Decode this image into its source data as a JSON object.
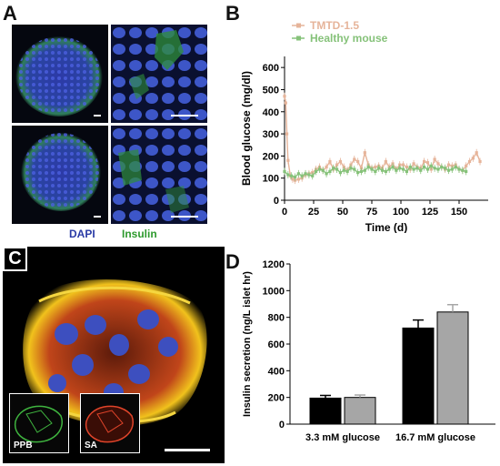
{
  "panels": {
    "a": {
      "letter": "A",
      "legend_dapi": "DAPI",
      "legend_insulin": "Insulin"
    },
    "b": {
      "letter": "B"
    },
    "c": {
      "letter": "C",
      "inset_left": "PPB",
      "inset_right": "SA"
    },
    "d": {
      "letter": "D"
    }
  },
  "chart_data": [
    {
      "panel": "B",
      "type": "line",
      "xlabel": "Time (d)",
      "ylabel": "Blood glucose (mg/dl)",
      "xlim": [
        0,
        175
      ],
      "ylim": [
        0,
        650
      ],
      "xticks": [
        "0",
        "25",
        "50",
        "75",
        "100",
        "125",
        "150"
      ],
      "yticks": [
        "0",
        "100",
        "200",
        "300",
        "400",
        "500",
        "600"
      ],
      "legend_position": "top-left",
      "series": [
        {
          "name": "TMTD-1.5",
          "color": "#e6b49a",
          "x": [
            0,
            1,
            2,
            3,
            5,
            7,
            9,
            12,
            15,
            18,
            21,
            24,
            27,
            30,
            33,
            36,
            39,
            42,
            45,
            48,
            51,
            54,
            57,
            60,
            63,
            66,
            69,
            72,
            75,
            78,
            81,
            84,
            87,
            90,
            93,
            96,
            99,
            102,
            105,
            108,
            111,
            114,
            117,
            120,
            123,
            126,
            129,
            132,
            135,
            138,
            141,
            144,
            147,
            150,
            153,
            156,
            159,
            162,
            165,
            168
          ],
          "y": [
            470,
            440,
            300,
            180,
            110,
            95,
            90,
            95,
            100,
            115,
            120,
            125,
            140,
            150,
            135,
            150,
            175,
            140,
            160,
            175,
            150,
            135,
            160,
            185,
            175,
            145,
            215,
            160,
            145,
            150,
            155,
            145,
            175,
            150,
            165,
            140,
            160,
            160,
            150,
            140,
            165,
            150,
            145,
            175,
            170,
            140,
            185,
            165,
            150,
            140,
            160,
            155,
            160,
            140,
            135,
            155,
            175,
            190,
            215,
            175
          ]
        },
        {
          "name": "Healthy mouse",
          "color": "#86c27a",
          "x": [
            0,
            3,
            6,
            9,
            12,
            15,
            18,
            21,
            24,
            27,
            30,
            33,
            36,
            39,
            42,
            45,
            48,
            51,
            54,
            57,
            60,
            63,
            66,
            69,
            72,
            75,
            78,
            81,
            84,
            87,
            90,
            93,
            96,
            99,
            102,
            105,
            108,
            111,
            114,
            117,
            120,
            123,
            126,
            129,
            132,
            135,
            138,
            141,
            144,
            147,
            150,
            153,
            156
          ],
          "y": [
            130,
            115,
            110,
            105,
            120,
            110,
            120,
            115,
            110,
            130,
            140,
            135,
            120,
            130,
            145,
            140,
            125,
            135,
            130,
            145,
            140,
            125,
            130,
            135,
            150,
            140,
            130,
            145,
            135,
            130,
            140,
            150,
            135,
            145,
            140,
            130,
            150,
            140,
            145,
            135,
            150,
            140,
            155,
            145,
            140,
            150,
            145,
            135,
            140,
            150,
            140,
            135,
            130
          ]
        }
      ]
    },
    {
      "panel": "D",
      "type": "bar",
      "ylabel": "Insulin secretion (ng/L islet hr)",
      "ylim": [
        0,
        1200
      ],
      "yticks": [
        "0",
        "200",
        "400",
        "600",
        "800",
        "1000",
        "1200"
      ],
      "categories": [
        "3.3 mM glucose",
        "16.7 mM glucose"
      ],
      "series": [
        {
          "color": "#000000",
          "values": [
            195,
            720
          ],
          "errors": [
            20,
            60
          ]
        },
        {
          "color": "#a6a6a6",
          "values": [
            200,
            840
          ],
          "errors": [
            18,
            55
          ]
        }
      ]
    }
  ]
}
